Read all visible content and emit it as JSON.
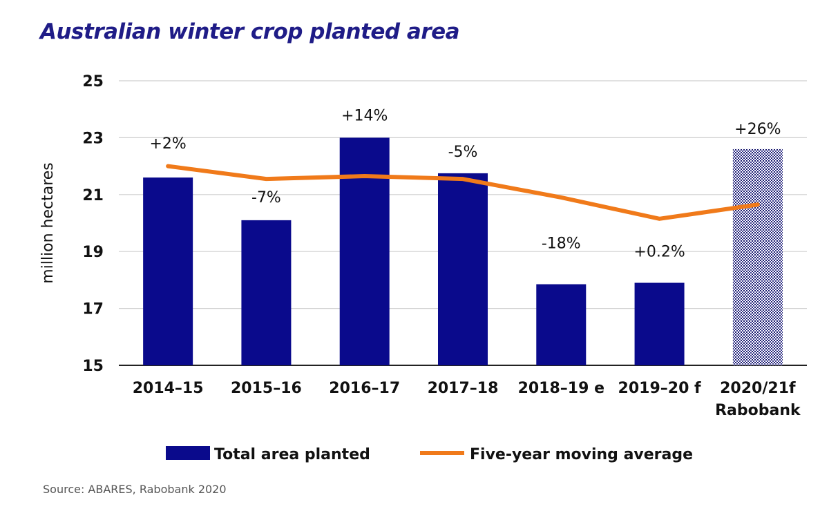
{
  "title": "Australian winter crop planted area",
  "source": "Source: ABARES, Rabobank 2020",
  "chart_data": {
    "type": "bar",
    "ylabel": "million hectares",
    "xlabel": "",
    "ylim": [
      15,
      25
    ],
    "yticks": [
      15,
      17,
      19,
      21,
      23,
      25
    ],
    "grid": "horizontal",
    "legend_position": "bottom",
    "categories": [
      [
        "2014–15"
      ],
      [
        "2015–16"
      ],
      [
        "2016–17"
      ],
      [
        "2017–18"
      ],
      [
        "2018–19 e"
      ],
      [
        "2019–20 f"
      ],
      [
        "2020/21f",
        "Rabobank"
      ]
    ],
    "series": [
      {
        "name": "Total area planted",
        "type": "bar",
        "color": "#0a0a8c",
        "values": [
          21.6,
          20.1,
          23.0,
          21.75,
          17.85,
          17.9,
          22.6
        ],
        "labels": [
          "+2%",
          "-7%",
          "+14%",
          "-5%",
          "-18%",
          "+0.2%",
          "+26%"
        ],
        "forecast_pattern": [
          false,
          false,
          false,
          false,
          false,
          false,
          true
        ]
      },
      {
        "name": "Five-year moving average",
        "type": "line",
        "color": "#f07a1a",
        "values": [
          22.0,
          21.55,
          21.65,
          21.55,
          20.9,
          20.15,
          20.65
        ]
      }
    ]
  }
}
